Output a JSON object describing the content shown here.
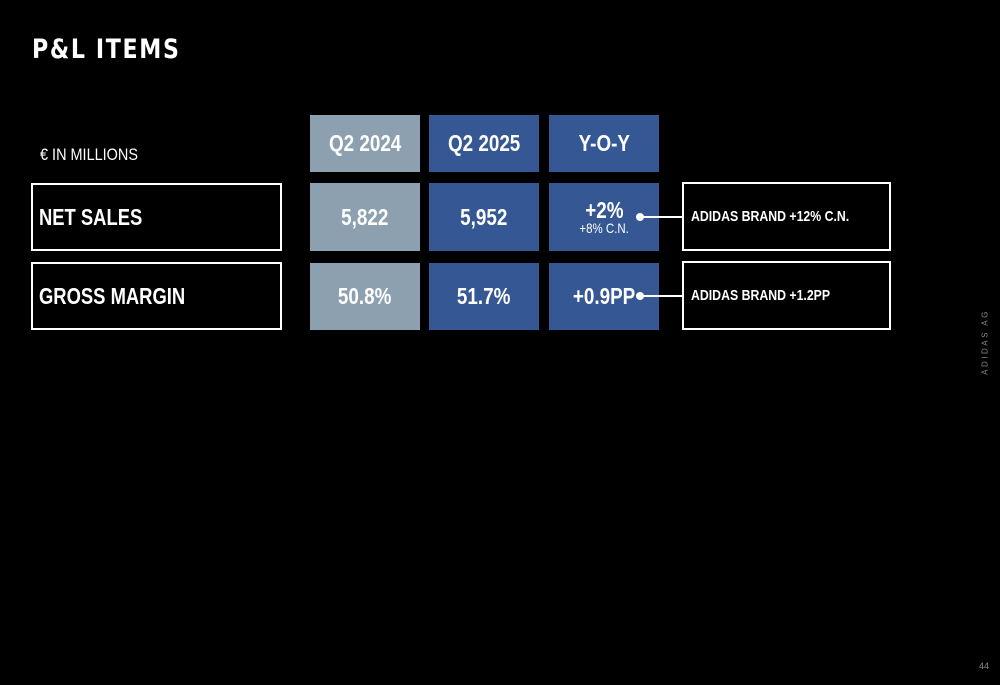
{
  "title": "P&L ITEMS",
  "unit_label": "€ IN MILLIONS",
  "columns": {
    "q2_2024": "Q2 2024",
    "q2_2025": "Q2 2025",
    "yoy": "Y-O-Y"
  },
  "rows": [
    {
      "label": "NET SALES",
      "q2_2024": "5,822",
      "q2_2025": "5,952",
      "yoy": "+2%",
      "yoy_sub": "+8% C.N.",
      "note": "ADIDAS BRAND +12% C.N."
    },
    {
      "label": "GROSS MARGIN",
      "q2_2024": "50.8%",
      "q2_2025": "51.7%",
      "yoy": "+0.9PP",
      "note": "ADIDAS BRAND +1.2PP"
    }
  ],
  "side_label": "ADIDAS AG",
  "page_number": "44",
  "colors": {
    "background": "#000000",
    "q2_2024_fill": "#8ca0b0",
    "q2_2025_fill": "#355793",
    "text": "#ffffff"
  }
}
